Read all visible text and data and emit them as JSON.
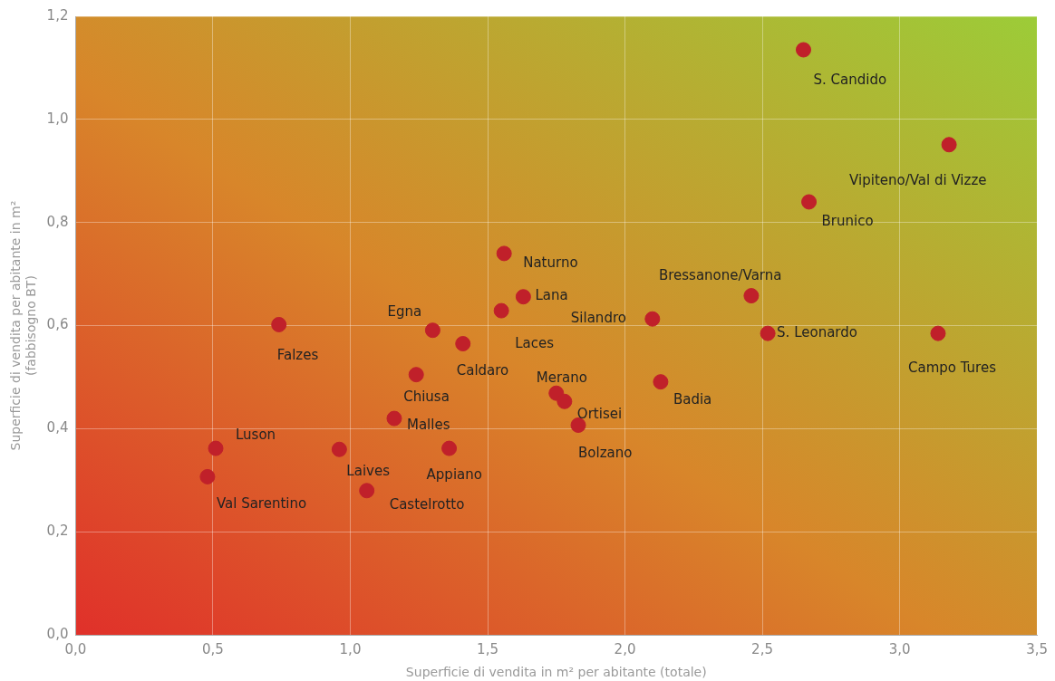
{
  "chart_data": {
    "type": "scatter",
    "xlabel": "Superficie di vendita in m² per abitante (totale)",
    "ylabel": "Superficie di vendita per abitante in m²\n(fabbisogno BT)",
    "series": [
      {
        "color": "#c0202a",
        "x": [
          2.65,
          3.18,
          2.67,
          1.56,
          1.63,
          1.55,
          2.46,
          2.1,
          2.52,
          3.14,
          0.74,
          1.3,
          1.41,
          1.24,
          2.13,
          1.75,
          1.78,
          1.83,
          1.16,
          0.51,
          0.96,
          1.36,
          0.48,
          1.06
        ],
        "values": [
          1.135,
          0.951,
          0.84,
          0.74,
          0.656,
          0.629,
          0.658,
          0.613,
          0.585,
          0.585,
          0.602,
          0.591,
          0.565,
          0.505,
          0.491,
          0.469,
          0.453,
          0.407,
          0.42,
          0.362,
          0.36,
          0.362,
          0.307,
          0.28
        ]
      }
    ],
    "annotations": [
      {
        "text": "S. Candido",
        "x": 2.65,
        "y": 1.135
      },
      {
        "text": "Vipiteno/Val di Vizze",
        "x": 3.18,
        "y": 0.951
      },
      {
        "text": "Brunico",
        "x": 2.67,
        "y": 0.84
      },
      {
        "text": "Naturno",
        "x": 1.56,
        "y": 0.74
      },
      {
        "text": "Lana",
        "x": 1.63,
        "y": 0.656
      },
      {
        "text": "Laces",
        "x": 1.55,
        "y": 0.629
      },
      {
        "text": "Bressanone/Varna",
        "x": 2.46,
        "y": 0.658
      },
      {
        "text": "Silandro",
        "x": 2.1,
        "y": 0.613
      },
      {
        "text": "S. Leonardo",
        "x": 2.52,
        "y": 0.585
      },
      {
        "text": "Campo Tures",
        "x": 3.14,
        "y": 0.585
      },
      {
        "text": "Falzes",
        "x": 0.74,
        "y": 0.602
      },
      {
        "text": "Egna",
        "x": 1.3,
        "y": 0.591
      },
      {
        "text": "Caldaro",
        "x": 1.41,
        "y": 0.565
      },
      {
        "text": "Chiusa",
        "x": 1.24,
        "y": 0.505
      },
      {
        "text": "Badia",
        "x": 2.13,
        "y": 0.491
      },
      {
        "text": "Merano",
        "x": 1.75,
        "y": 0.469
      },
      {
        "text": "Ortisei",
        "x": 1.78,
        "y": 0.453
      },
      {
        "text": "Bolzano",
        "x": 1.83,
        "y": 0.407
      },
      {
        "text": "Malles",
        "x": 1.16,
        "y": 0.42
      },
      {
        "text": "Luson",
        "x": 0.51,
        "y": 0.362
      },
      {
        "text": "Laives",
        "x": 0.96,
        "y": 0.36
      },
      {
        "text": "Appiano",
        "x": 1.36,
        "y": 0.362
      },
      {
        "text": "Val Sarentino",
        "x": 0.48,
        "y": 0.307
      },
      {
        "text": "Castelrotto",
        "x": 1.06,
        "y": 0.28
      }
    ],
    "xlim": [
      0,
      3.5
    ],
    "xticks": [
      {
        "value": 0,
        "label": "0,0"
      },
      {
        "value": 0.5,
        "label": "0,5"
      },
      {
        "value": 1,
        "label": "1,0"
      },
      {
        "value": 1.5,
        "label": "1,5"
      },
      {
        "value": 2,
        "label": "2,0"
      },
      {
        "value": 2.5,
        "label": "2,5"
      },
      {
        "value": 3,
        "label": "3,0"
      },
      {
        "value": 3.5,
        "label": "3,5"
      }
    ],
    "ylim": [
      0,
      1.2
    ],
    "yticks": [
      {
        "value": 0,
        "label": "0,0"
      },
      {
        "value": 0.2,
        "label": "0,2"
      },
      {
        "value": 0.4,
        "label": "0,4"
      },
      {
        "value": 0.6,
        "label": "0,6"
      },
      {
        "value": 0.8,
        "label": "0,8"
      },
      {
        "value": 1,
        "label": "1,0"
      },
      {
        "value": 1.2,
        "label": "1,2"
      }
    ],
    "grid": true,
    "legend": false,
    "marker": "circle"
  }
}
